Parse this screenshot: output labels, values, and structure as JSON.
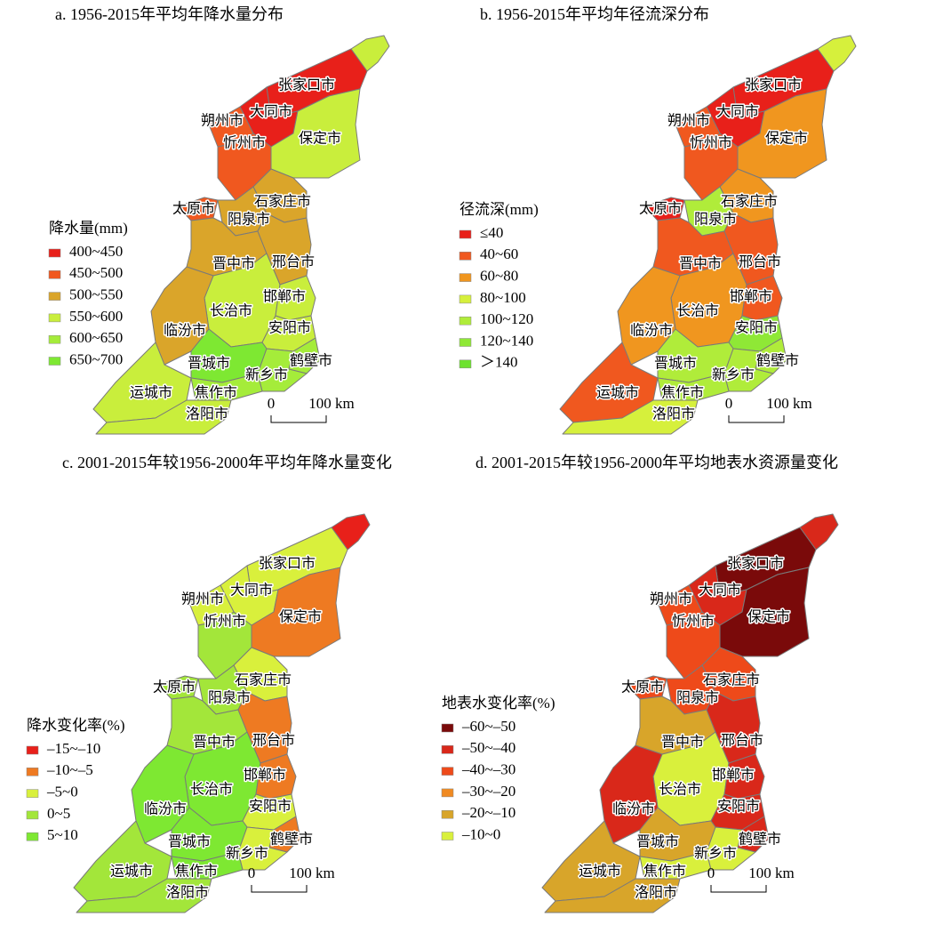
{
  "cities": [
    null,
    "张家口市",
    "大同市",
    "朔州市",
    "保定市",
    "忻州市",
    "太原市",
    "石家庄市",
    "阳泉市",
    "晋中市",
    "邢台市",
    "长治市",
    "邯郸市",
    "临汾市",
    "安阳市",
    "鹤壁市",
    "晋城市",
    "新乡市",
    "运城市",
    "焦作市",
    "洛阳市"
  ],
  "panels": [
    {
      "title": "a. 1956-2015年平均年降水量分布",
      "legend_title": "降水量(mm)",
      "legend": [
        {
          "label": "400~450",
          "color": "#e8201a"
        },
        {
          "label": "450~500",
          "color": "#f0581f"
        },
        {
          "label": "500~550",
          "color": "#daa52a"
        },
        {
          "label": "550~600",
          "color": "#c9ee3c"
        },
        {
          "label": "600~650",
          "color": "#a5ec3a"
        },
        {
          "label": "650~700",
          "color": "#7ee832"
        }
      ],
      "classes": [
        3,
        0,
        0,
        1,
        3,
        1,
        1,
        2,
        2,
        2,
        2,
        3,
        3,
        2,
        3,
        4,
        5,
        4,
        3,
        4,
        3
      ],
      "scale": [
        "0",
        "100 km"
      ]
    },
    {
      "title": "b. 1956-2015年平均年径流深分布",
      "legend_title": "径流深(mm)",
      "legend": [
        {
          "label": "≤40",
          "color": "#e8201a"
        },
        {
          "label": "40~60",
          "color": "#f0581f"
        },
        {
          "label": "60~80",
          "color": "#f0961f"
        },
        {
          "label": "80~100",
          "color": "#d6f03c"
        },
        {
          "label": "100~120",
          "color": "#b0ec3a"
        },
        {
          "label": "120~140",
          "color": "#8fe836"
        },
        {
          "label": "＞140",
          "color": "#6de22e"
        }
      ],
      "classes": [
        3,
        0,
        0,
        1,
        2,
        1,
        0,
        2,
        4,
        1,
        1,
        2,
        1,
        2,
        5,
        4,
        4,
        4,
        1,
        4,
        3
      ],
      "scale": [
        "0",
        "100 km"
      ]
    },
    {
      "title": "c. 2001-2015年较1956-2000年平均年降水量变化",
      "legend_title": "降水变化率(%)",
      "legend": [
        {
          "label": "–15~–10",
          "color": "#e8201a"
        },
        {
          "label": "–10~–5",
          "color": "#ee7a22"
        },
        {
          "label": "–5~0",
          "color": "#d9f03c"
        },
        {
          "label": "0~5",
          "color": "#a3e63a"
        },
        {
          "label": "5~10",
          "color": "#7ee832"
        }
      ],
      "classes": [
        0,
        2,
        2,
        2,
        1,
        3,
        3,
        2,
        3,
        3,
        1,
        4,
        1,
        4,
        2,
        1,
        4,
        2,
        3,
        4,
        3
      ],
      "scale": [
        "0",
        "100 km"
      ]
    },
    {
      "title": "d. 2001-2015年较1956-2000年平均地表水资源量变化",
      "legend_title": "地表水变化率(%)",
      "legend": [
        {
          "label": "–60~–50",
          "color": "#7a0a0a"
        },
        {
          "label": "–50~–40",
          "color": "#d9281a"
        },
        {
          "label": "–40~–30",
          "color": "#ee4a1a"
        },
        {
          "label": "–30~–20",
          "color": "#f08a22"
        },
        {
          "label": "–20~–10",
          "color": "#d8a52a"
        },
        {
          "label": "–10~0",
          "color": "#d9f03c"
        }
      ],
      "classes": [
        1,
        0,
        1,
        2,
        0,
        2,
        2,
        2,
        2,
        4,
        1,
        5,
        1,
        1,
        1,
        1,
        4,
        5,
        4,
        5,
        4
      ],
      "scale": [
        "0",
        "100 km"
      ]
    }
  ]
}
